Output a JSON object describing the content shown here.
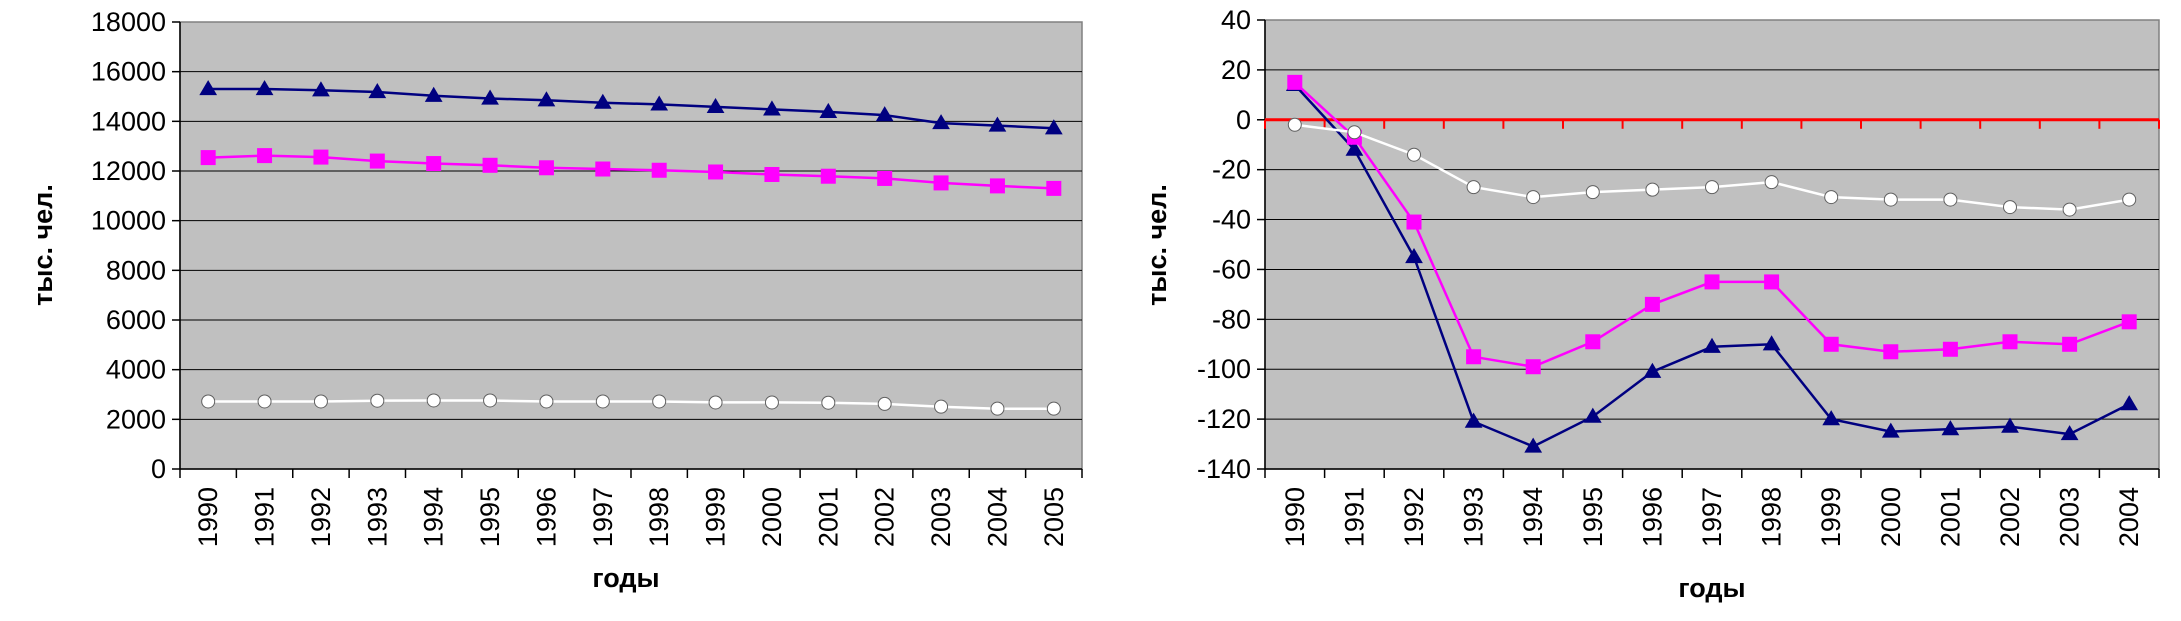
{
  "chart_data": [
    {
      "type": "line",
      "title": "",
      "xlabel": "годы",
      "ylabel": "тыс. чел.",
      "ylim": [
        0,
        18000
      ],
      "yticks": [
        0,
        2000,
        4000,
        6000,
        8000,
        10000,
        12000,
        14000,
        16000,
        18000
      ],
      "x": [
        "1990",
        "1991",
        "1992",
        "1993",
        "1994",
        "1995",
        "1996",
        "1997",
        "1998",
        "1999",
        "2000",
        "2001",
        "2002",
        "2003",
        "2004",
        "2005"
      ],
      "plot_bg": "#c0c0c0",
      "grid": true,
      "legend": "none",
      "series": [
        {
          "color": "#000080",
          "marker": "triangle",
          "values": [
            15300,
            15300,
            15250,
            15180,
            15030,
            14920,
            14850,
            14750,
            14680,
            14580,
            14480,
            14380,
            14250,
            13930,
            13830,
            13720
          ]
        },
        {
          "color": "#ff00ff",
          "marker": "square",
          "values": [
            12540,
            12620,
            12560,
            12400,
            12300,
            12230,
            12130,
            12080,
            12030,
            11960,
            11860,
            11790,
            11700,
            11520,
            11400,
            11300
          ]
        },
        {
          "color": "#ffffff",
          "marker": "circle",
          "values": [
            2720,
            2720,
            2720,
            2750,
            2760,
            2760,
            2720,
            2720,
            2720,
            2680,
            2680,
            2670,
            2620,
            2510,
            2430,
            2430
          ]
        }
      ]
    },
    {
      "type": "line",
      "title": "",
      "xlabel": "годы",
      "ylabel": "тыс. чел.",
      "ylim": [
        -140,
        40
      ],
      "yticks": [
        -140,
        -120,
        -100,
        -80,
        -60,
        -40,
        -20,
        0,
        20,
        40
      ],
      "x": [
        "1990",
        "1991",
        "1992",
        "1993",
        "1994",
        "1995",
        "1996",
        "1997",
        "1998",
        "1999",
        "2000",
        "2001",
        "2002",
        "2003",
        "2004"
      ],
      "plot_bg": "#c0c0c0",
      "grid": true,
      "legend": "none",
      "zero_line_color": "#ff0000",
      "series": [
        {
          "color": "#000080",
          "marker": "triangle",
          "values": [
            14,
            -12,
            -55,
            -121,
            -131,
            -119,
            -101,
            -91,
            -90,
            -120,
            -125,
            -124,
            -123,
            -126,
            -114
          ]
        },
        {
          "color": "#ff00ff",
          "marker": "square",
          "values": [
            15,
            -7,
            -41,
            -95,
            -99,
            -89,
            -74,
            -65,
            -65,
            -90,
            -93,
            -92,
            -89,
            -90,
            -81
          ]
        },
        {
          "color": "#ffffff",
          "marker": "circle",
          "values": [
            -2,
            -5,
            -14,
            -27,
            -31,
            -29,
            -28,
            -27,
            -25,
            -31,
            -32,
            -32,
            -35,
            -36,
            -32
          ]
        }
      ]
    }
  ]
}
